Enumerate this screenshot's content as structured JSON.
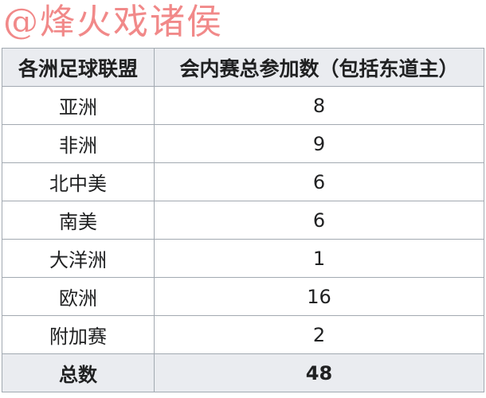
{
  "watermark": "@烽火戏诸侯",
  "table": {
    "headers": [
      "各洲足球联盟",
      "会内赛总参加数（包括东道主）"
    ],
    "rows": [
      [
        "亚洲",
        "8"
      ],
      [
        "非洲",
        "9"
      ],
      [
        "北中美",
        "6"
      ],
      [
        "南美",
        "6"
      ],
      [
        "大洋洲",
        "1"
      ],
      [
        "欧洲",
        "16"
      ],
      [
        "附加赛",
        "2"
      ]
    ],
    "total": [
      "总数",
      "48"
    ]
  }
}
